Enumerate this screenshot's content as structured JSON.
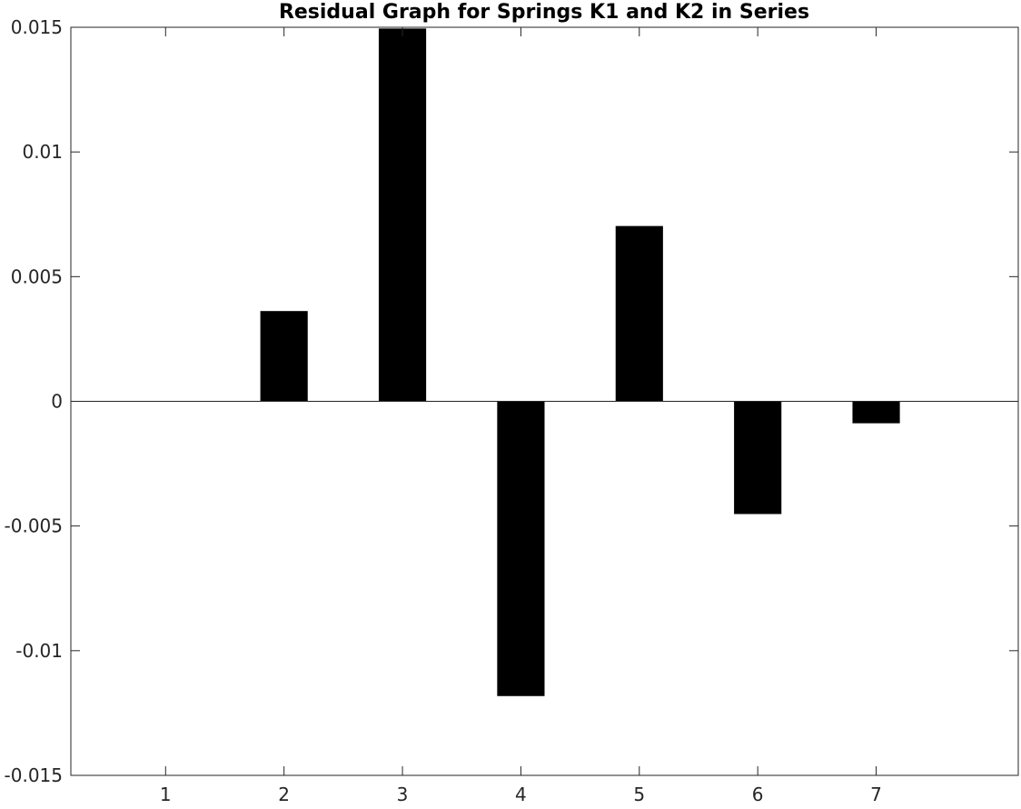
{
  "chart_data": {
    "type": "bar",
    "title": "Residual Graph for Springs K1 and K2 in Series",
    "xlabel": "",
    "ylabel": "",
    "categories": [
      "1",
      "2",
      "3",
      "4",
      "5",
      "6",
      "7"
    ],
    "x": [
      1,
      2,
      3,
      4,
      5,
      6,
      7
    ],
    "values": [
      0.0,
      0.00362,
      0.01495,
      -0.01182,
      0.00703,
      -0.00452,
      -0.00088
    ],
    "xlim": [
      0.2,
      8.2
    ],
    "ylim": [
      -0.015,
      0.015
    ],
    "yticks": [
      -0.015,
      -0.01,
      -0.005,
      0,
      0.005,
      0.01,
      0.015
    ],
    "ytick_labels": [
      "-0.015",
      "-0.01",
      "-0.005",
      "0",
      "0.005",
      "0.01",
      "0.015"
    ],
    "xticks": [
      1,
      2,
      3,
      4,
      5,
      6,
      7
    ],
    "xtick_labels": [
      "1",
      "2",
      "3",
      "4",
      "5",
      "6",
      "7"
    ],
    "bar_width": 0.4,
    "baseline": 0,
    "grid": false,
    "legend": "none",
    "colors": {
      "bar": "#000000",
      "axis": "#262626",
      "background": "#ffffff"
    }
  }
}
